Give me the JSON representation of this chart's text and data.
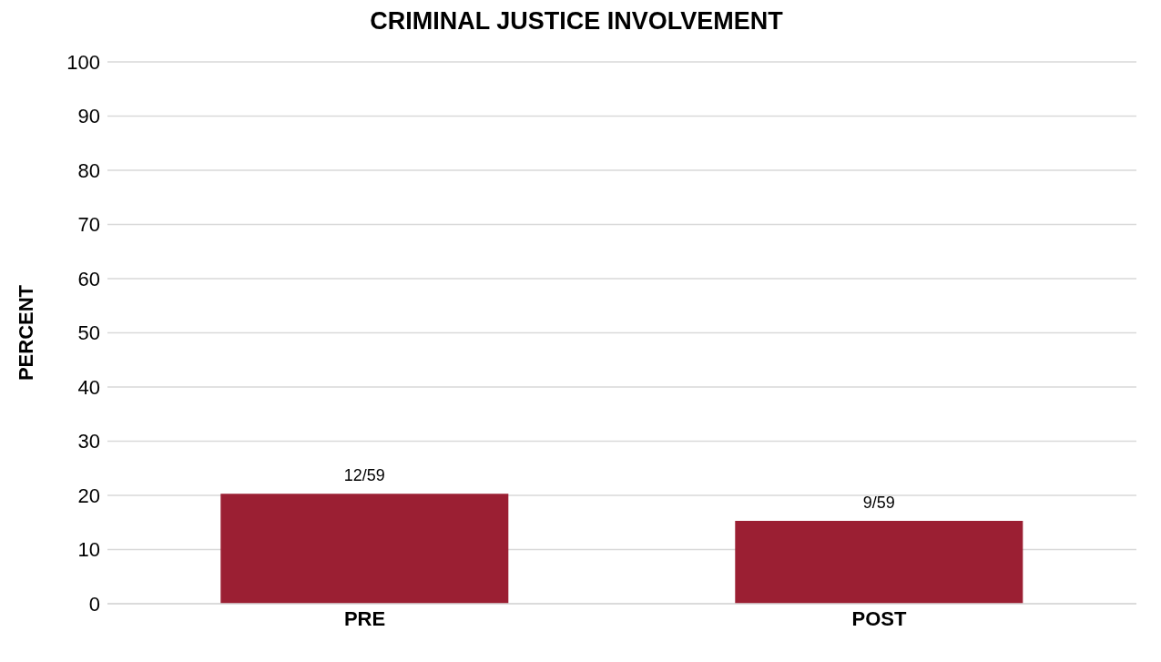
{
  "chart_data": {
    "type": "bar",
    "title": "CRIMINAL JUSTICE INVOLVEMENT",
    "ylabel": "PERCENT",
    "categories": [
      "PRE",
      "POST"
    ],
    "values": [
      20.3,
      15.3
    ],
    "value_labels": [
      "12/59",
      "9/59"
    ],
    "color": "#9b1f33",
    "ylim": [
      0,
      100
    ],
    "yticks": [
      0,
      10,
      20,
      30,
      40,
      50,
      60,
      70,
      80,
      90,
      100
    ],
    "grid": "y"
  }
}
